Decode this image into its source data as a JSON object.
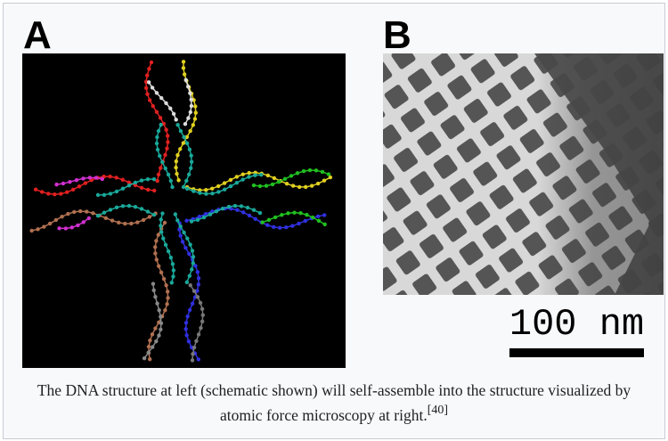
{
  "figure": {
    "panels": [
      {
        "label": "A"
      },
      {
        "label": "B"
      }
    ],
    "scale_bar": {
      "label": "100 nm"
    },
    "caption": {
      "text": "The DNA structure at left (schematic shown) will self-assemble into the structure visualized by atomic force microscopy at right.",
      "citation": "[40]"
    }
  }
}
